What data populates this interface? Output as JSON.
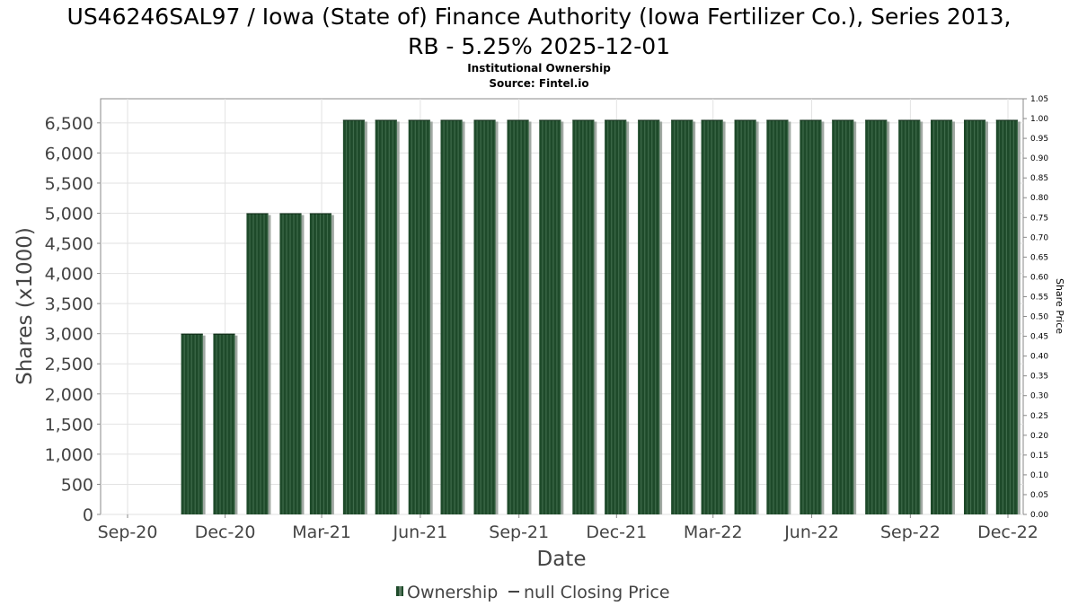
{
  "chart_data": {
    "type": "bar",
    "title": "US46246SAL97 / Iowa (State of) Finance Authority (Iowa Fertilizer Co.), Series 2013, RB - 5.25% 2025-12-01",
    "title_lines": [
      "US46246SAL97 / Iowa (State of) Finance Authority (Iowa Fertilizer Co.), Series 2013,",
      "RB - 5.25% 2025-12-01"
    ],
    "subtitle_lines": [
      "Institutional Ownership",
      "Source: Fintel.io"
    ],
    "xlabel": "Date",
    "ylabel": "Shares (x1000)",
    "ylabel_right": "Share Price",
    "ylim": [
      0,
      6900
    ],
    "ylim_right": [
      0,
      1.05
    ],
    "y_ticks": [
      "0",
      "500",
      "1,000",
      "1,500",
      "2,000",
      "2,500",
      "3,000",
      "3,500",
      "4,000",
      "4,500",
      "5,000",
      "5,500",
      "6,000",
      "6,500"
    ],
    "y_ticks_right": [
      "0.00",
      "0.05",
      "0.10",
      "0.15",
      "0.20",
      "0.25",
      "0.30",
      "0.35",
      "0.40",
      "0.45",
      "0.50",
      "0.55",
      "0.60",
      "0.65",
      "0.70",
      "0.75",
      "0.80",
      "0.85",
      "0.90",
      "0.95",
      "1.00",
      "1.05"
    ],
    "x_ticks": [
      "Sep-20",
      "Dec-20",
      "Mar-21",
      "Jun-21",
      "Sep-21",
      "Dec-21",
      "Mar-22",
      "Jun-22",
      "Sep-22",
      "Dec-22"
    ],
    "grid": true,
    "legend_position": "bottom",
    "series": [
      {
        "name": "Ownership",
        "color": "#1e4a2a",
        "x": [
          "2020-10-31",
          "2020-11-30",
          "2020-12-31",
          "2021-01-31",
          "2021-02-28",
          "2021-03-31",
          "2021-04-30",
          "2021-05-31",
          "2021-06-30",
          "2021-07-31",
          "2021-08-31",
          "2021-09-30",
          "2021-10-31",
          "2021-11-30",
          "2021-12-31",
          "2022-01-31",
          "2022-02-28",
          "2022-03-31",
          "2022-04-30",
          "2022-05-31",
          "2022-06-30",
          "2022-07-31",
          "2022-08-31",
          "2022-09-30",
          "2022-10-31",
          "2022-11-30"
        ],
        "values": [
          3000,
          3000,
          5000,
          5000,
          5000,
          6550,
          6550,
          6550,
          6550,
          6550,
          6550,
          6550,
          6550,
          6550,
          6550,
          6550,
          6550,
          6550,
          6550,
          6550,
          6550,
          6550,
          6550,
          6550,
          6550,
          6550
        ]
      },
      {
        "name": "null Closing Price",
        "color": "#444444",
        "values": []
      }
    ]
  }
}
